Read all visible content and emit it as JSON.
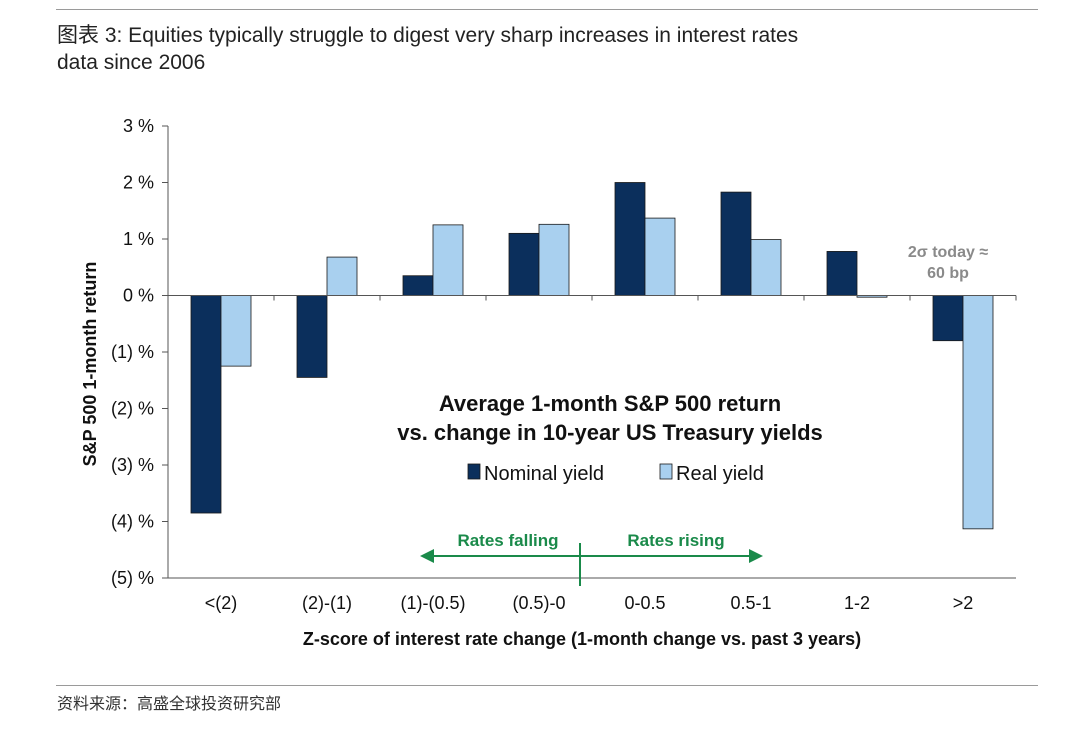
{
  "page": {
    "title": "图表 3: Equities typically struggle to digest very sharp increases in interest rates",
    "subtitle": "data since 2006",
    "source": "资料来源：高盛全球投资研究部"
  },
  "chart_data": {
    "type": "bar",
    "title_lines": [
      "Average 1-month S&P 500 return",
      "vs. change in 10-year US Treasury yields"
    ],
    "xlabel": "Z-score of interest rate change (1-month change vs. past 3 years)",
    "ylabel": "S&P 500 1-month return",
    "ylim": [
      -5,
      3
    ],
    "yticks": [
      3,
      2,
      1,
      0,
      -1,
      -2,
      -3,
      -4,
      -5
    ],
    "ytick_labels": [
      "3 %",
      "2 %",
      "1 %",
      "0 %",
      "(1) %",
      "(2) %",
      "(3) %",
      "(4) %",
      "(5) %"
    ],
    "categories": [
      "<(2)",
      "(2)-(1)",
      "(1)-(0.5)",
      "(0.5)-0",
      "0-0.5",
      "0.5-1",
      "1-2",
      ">2"
    ],
    "series": [
      {
        "name": "Nominal yield",
        "color": "#0b2f5c",
        "values": [
          -3.85,
          -1.45,
          0.35,
          1.1,
          2.0,
          1.83,
          0.78,
          -0.8
        ]
      },
      {
        "name": "Real yield",
        "color": "#a9d0ef",
        "values": [
          -1.25,
          0.68,
          1.25,
          1.26,
          1.37,
          0.99,
          -0.03,
          -4.13
        ]
      }
    ],
    "legend_position": "inside-center",
    "grid": false,
    "annotations": {
      "rates_falling": "Rates falling",
      "rates_rising": "Rates rising",
      "today_line1": "2σ today ≈",
      "today_line2": "60 bp"
    },
    "annotation_color": "#1a8a4a"
  }
}
